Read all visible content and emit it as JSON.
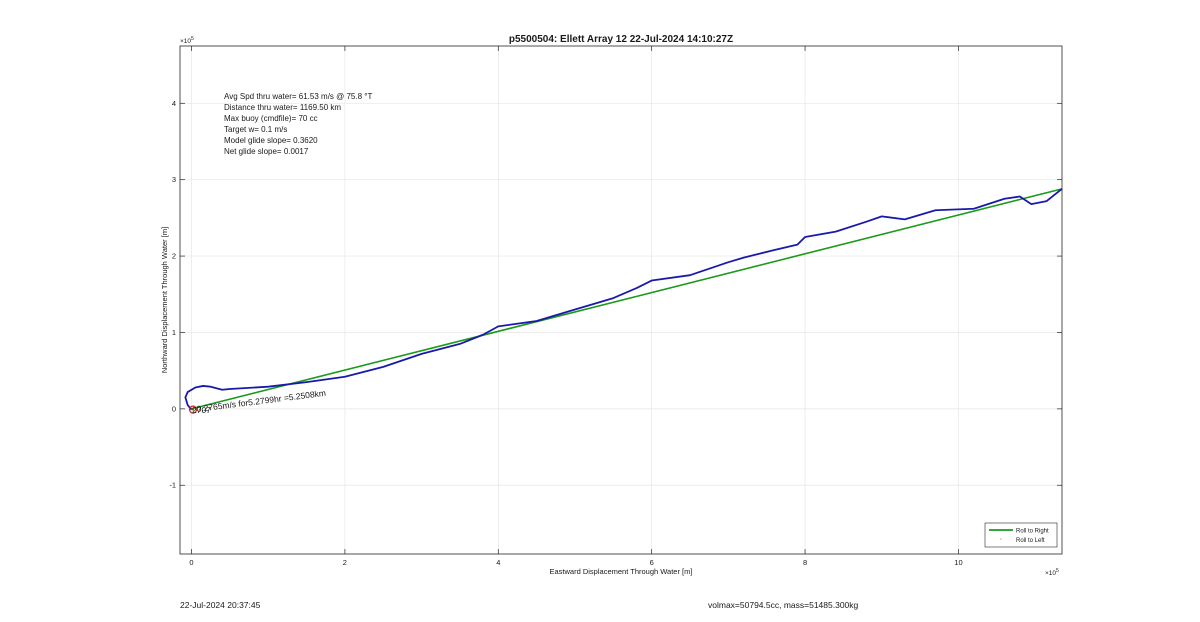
{
  "chart_data": {
    "type": "line",
    "title": "p5500504: Ellett Array 12 22-Jul-2024 14:10:27Z",
    "xlabel": "Eastward Displacement Through Water [m]",
    "ylabel": "Northward Displacement Through Water [m]",
    "x_exponent_label": "×10",
    "x_exponent_power": "5",
    "y_exponent_label": "×10",
    "y_exponent_power": "5",
    "xlim": [
      -0.15,
      11.35
    ],
    "ylim": [
      -1.9,
      4.75
    ],
    "x_ticks": [
      0,
      2,
      4,
      6,
      8,
      10
    ],
    "x_tick_labels": [
      "0",
      "2",
      "4",
      "6",
      "8",
      "10"
    ],
    "y_ticks": [
      -1,
      0,
      1,
      2,
      3,
      4
    ],
    "y_tick_labels": [
      "-1",
      "0",
      "1",
      "2",
      "3",
      "4"
    ],
    "grid": true,
    "legend_position": "bottom-right",
    "series": [
      {
        "name": "Roll to Right",
        "color": "#1a9a1a",
        "x": [
          0.0,
          11.35
        ],
        "y": [
          0.0,
          2.88
        ]
      },
      {
        "name": "Roll to Left",
        "color": "#cc2222",
        "x": [
          0.02
        ],
        "y": [
          -0.01
        ]
      },
      {
        "color": "#1a1aaa",
        "x": [
          0.0,
          -0.05,
          -0.08,
          -0.05,
          0.05,
          0.15,
          0.25,
          0.4,
          0.5,
          1.0,
          1.5,
          2.0,
          2.5,
          3.0,
          3.5,
          3.8,
          4.0,
          4.5,
          5.0,
          5.5,
          5.8,
          6.0,
          6.5,
          7.0,
          7.2,
          7.6,
          7.9,
          8.0,
          8.4,
          8.8,
          9.0,
          9.3,
          9.7,
          10.2,
          10.6,
          10.8,
          10.95,
          11.15,
          11.35
        ],
        "y": [
          -0.01,
          0.05,
          0.15,
          0.22,
          0.28,
          0.3,
          0.29,
          0.25,
          0.26,
          0.29,
          0.35,
          0.42,
          0.55,
          0.72,
          0.85,
          0.97,
          1.08,
          1.15,
          1.3,
          1.45,
          1.58,
          1.68,
          1.75,
          1.92,
          1.98,
          2.08,
          2.15,
          2.25,
          2.32,
          2.45,
          2.52,
          2.48,
          2.6,
          2.62,
          2.75,
          2.78,
          2.68,
          2.72,
          2.88
        ]
      }
    ],
    "annotations": [
      "Avg Spd thru water= 61.53 m/s @  75.8 °T",
      "Distance thru water= 1169.50 km",
      "Max buoy (cmdfile)= 70 cc",
      "Target w= 0.1 m/s",
      "Model glide slope= 0.3620",
      "Net glide slope= 0.0017"
    ],
    "point_label": "0.2765m/s for5.2799hr =5.2508km",
    "start_label": "2707"
  },
  "footer": {
    "timestamp": "22-Jul-2024 20:37:45",
    "vol_mass": "volmax=50794.5cc, mass=51485.300kg"
  }
}
